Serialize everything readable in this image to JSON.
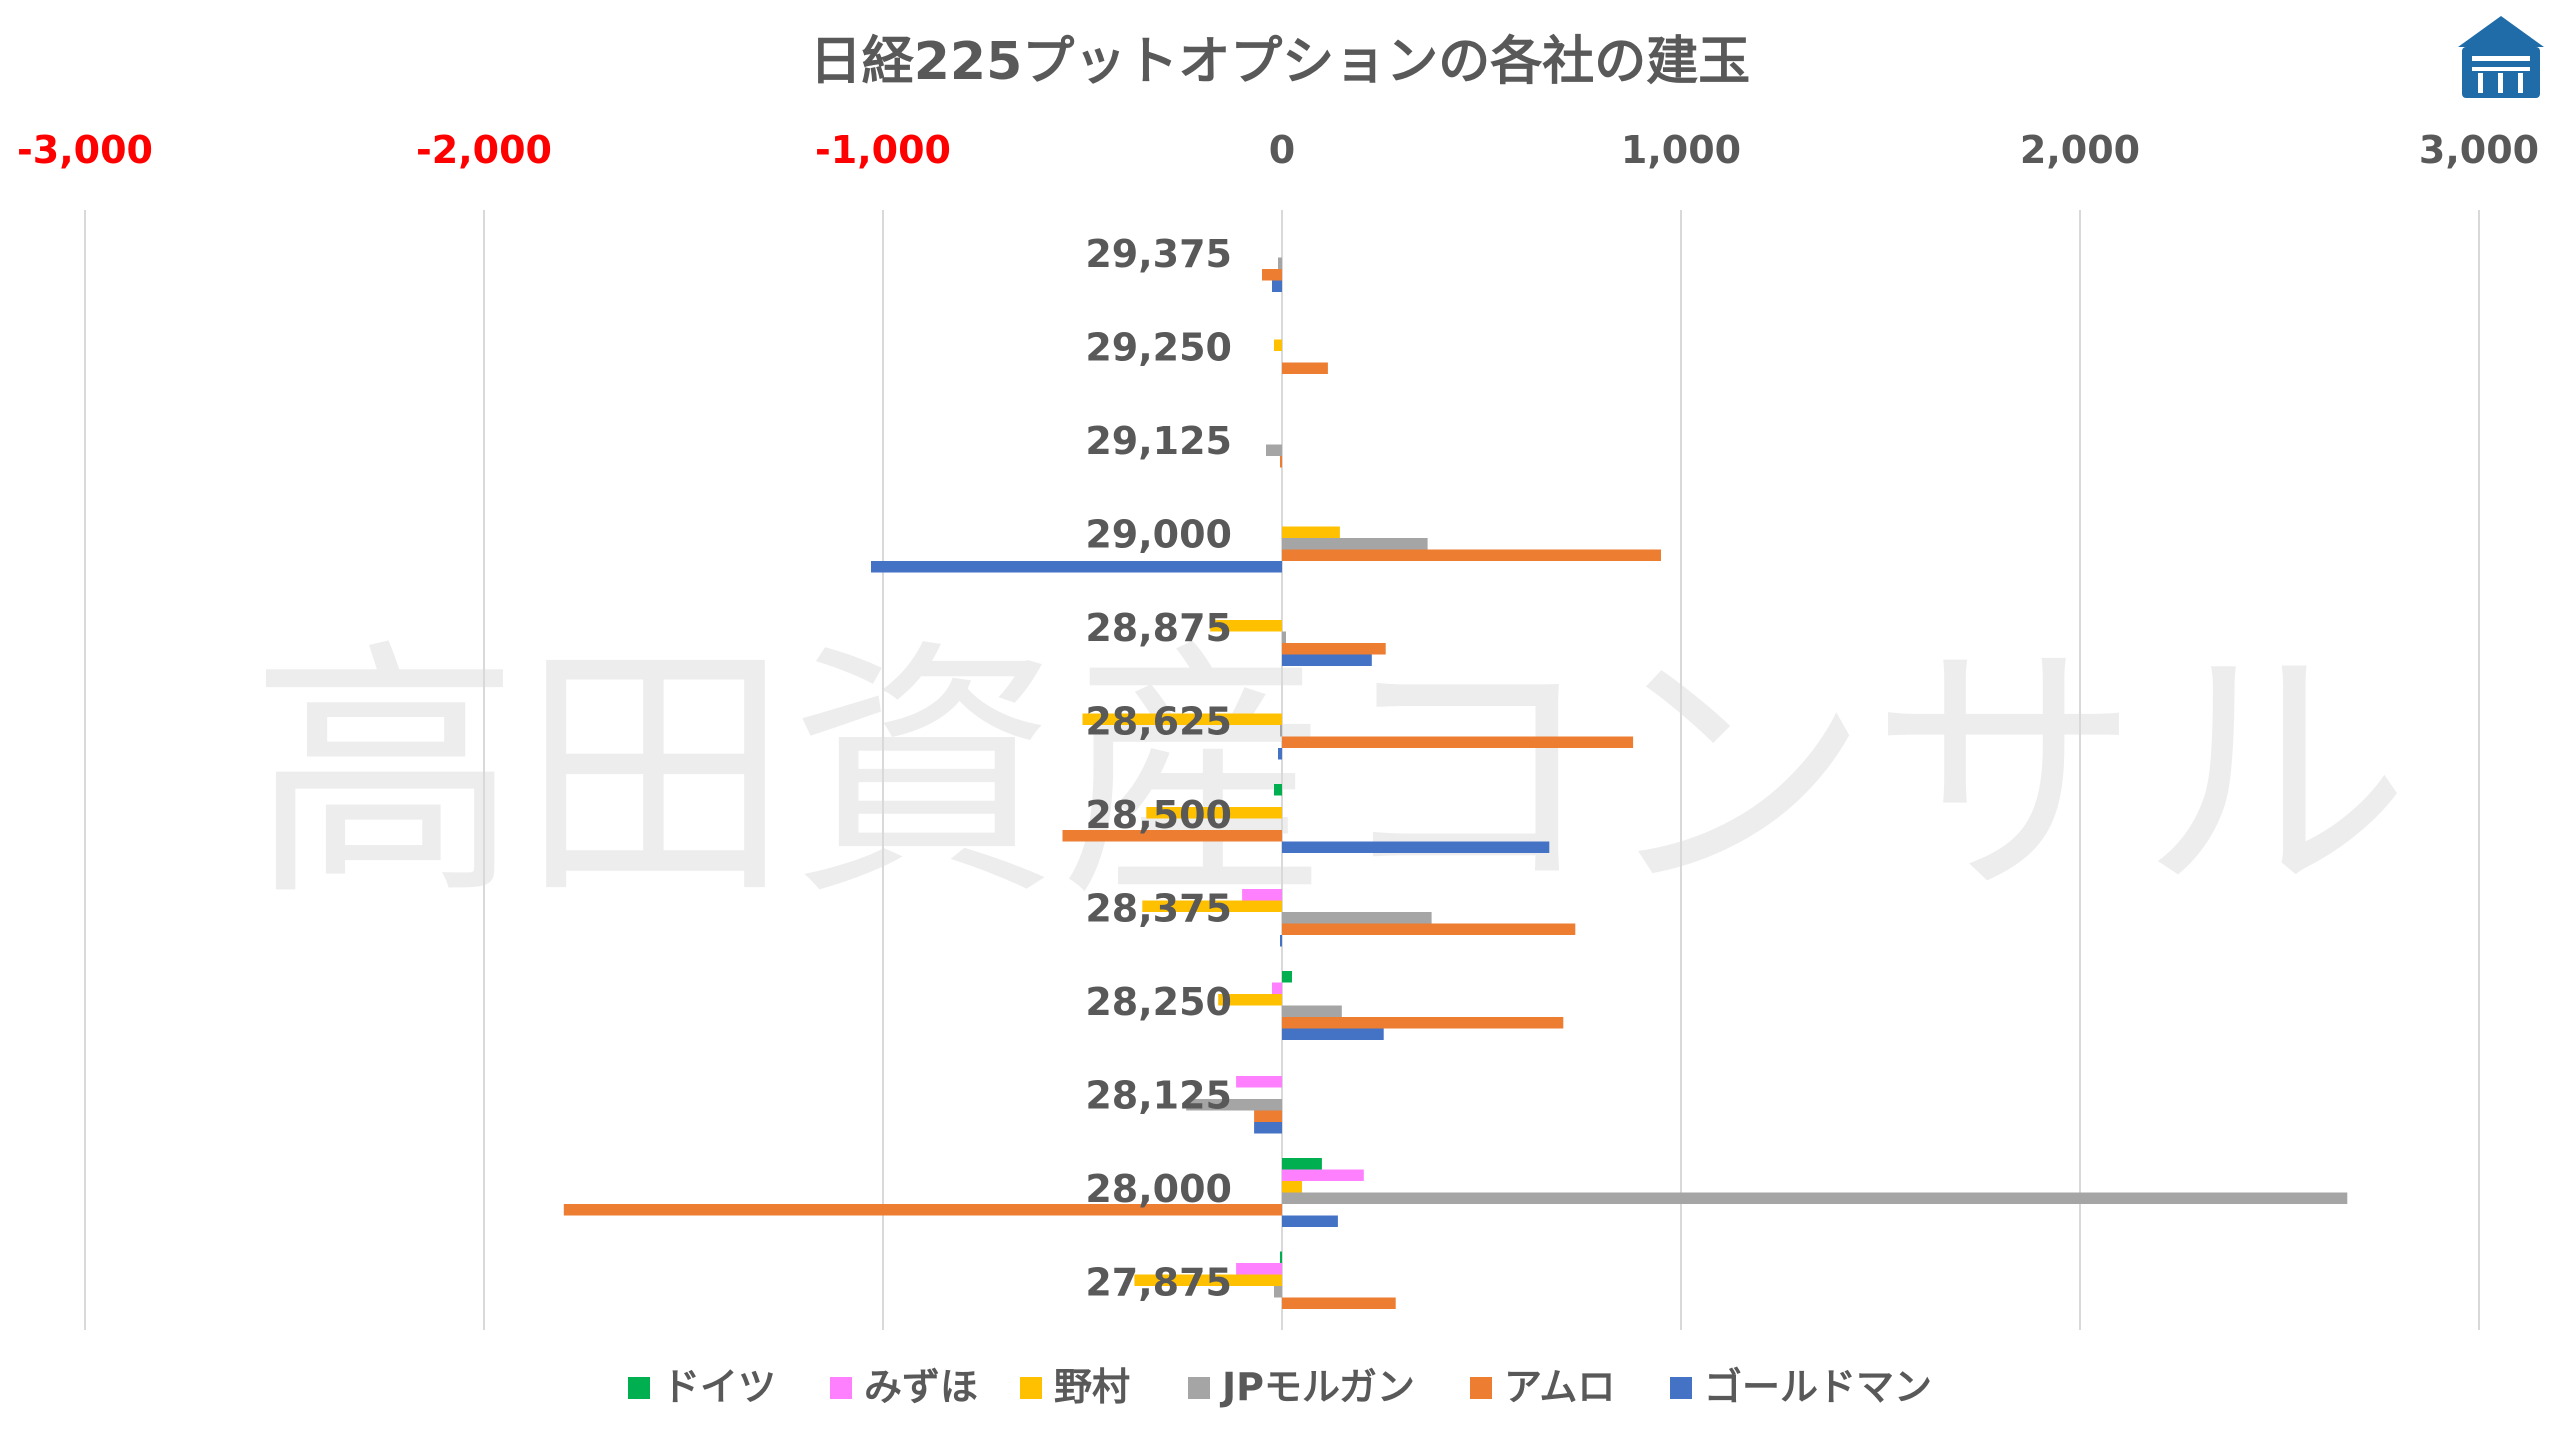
{
  "watermark": "高田資産コンサル",
  "logo": {
    "icon": "building-logo-icon",
    "color": "#1F6CA8"
  },
  "chart_data": {
    "type": "bar",
    "orientation": "horizontal",
    "title": "日経225プットオプションの各社の建玉",
    "xlim": [
      -3000,
      3000
    ],
    "xticks": [
      -3000,
      -2000,
      -1000,
      0,
      1000,
      2000,
      3000
    ],
    "xtick_labels": [
      "-3,000",
      "-2,000",
      "-1,000",
      "0",
      "1,000",
      "2,000",
      "3,000"
    ],
    "negative_tick_color": "#FF0000",
    "tick_color": "#595959",
    "grid": true,
    "axis_position": "top",
    "legend_position": "bottom",
    "categories": [
      "29,375",
      "29,250",
      "29,125",
      "29,000",
      "28,875",
      "28,625",
      "28,500",
      "28,375",
      "28,250",
      "28,125",
      "28,000",
      "27,875"
    ],
    "series": [
      {
        "name": "ドイツ",
        "color": "#00B050",
        "values": [
          0,
          0,
          0,
          0,
          0,
          0,
          -20,
          0,
          25,
          0,
          100,
          -5
        ]
      },
      {
        "name": "みずほ",
        "color": "#FF80FF",
        "values": [
          0,
          0,
          0,
          0,
          0,
          0,
          0,
          -100,
          -25,
          -115,
          205,
          -115
        ]
      },
      {
        "name": "野村",
        "color": "#FFC000",
        "values": [
          0,
          -20,
          0,
          145,
          -180,
          -500,
          -340,
          -350,
          -160,
          0,
          50,
          -370
        ]
      },
      {
        "name": "JPモルガン",
        "color": "#A5A5A5",
        "values": [
          -10,
          0,
          -40,
          365,
          10,
          -5,
          0,
          375,
          150,
          -240,
          2670,
          -20
        ]
      },
      {
        "name": "アムロ",
        "color": "#ED7D31",
        "values": [
          -50,
          115,
          -5,
          950,
          260,
          880,
          -550,
          735,
          705,
          -70,
          -1800,
          285
        ]
      },
      {
        "name": "ゴールドマン",
        "color": "#4472C4",
        "values": [
          -25,
          0,
          0,
          -1030,
          225,
          -10,
          670,
          -5,
          255,
          -70,
          140,
          0
        ]
      }
    ]
  }
}
